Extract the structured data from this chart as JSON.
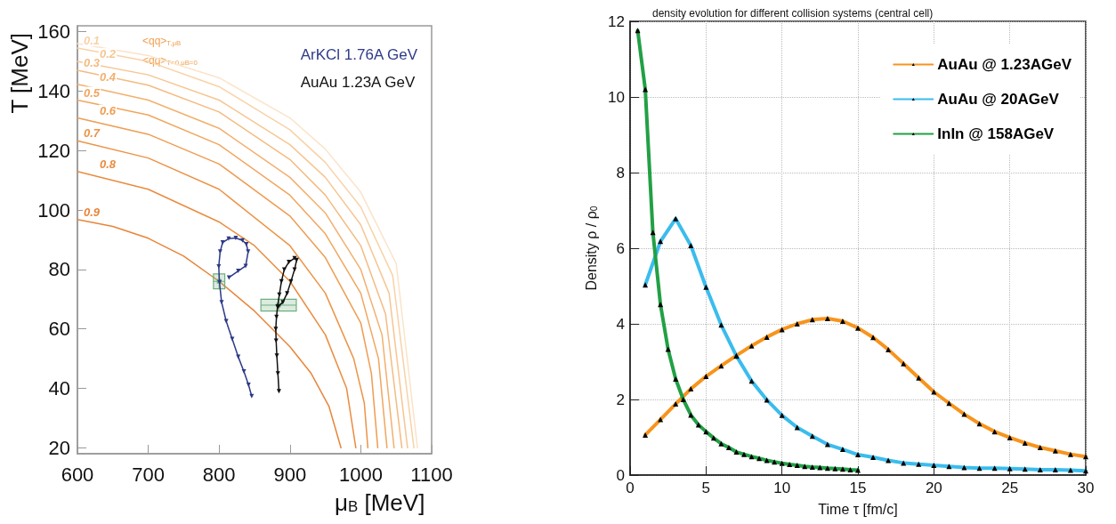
{
  "chart_data": [
    {
      "type": "line",
      "xlabel": "μ$_{B}$ [MeV]",
      "ylabel": "T [MeV]",
      "xlim": [
        600,
        1100
      ],
      "xticks": [
        600,
        700,
        800,
        900,
        1000,
        1100
      ],
      "ylim": [
        18,
        162
      ],
      "yticks": [
        20,
        40,
        60,
        80,
        100,
        120,
        140,
        160
      ],
      "grid": false,
      "legend": "top right",
      "annotations": [
        "<qq>$_{T,μB}$",
        "<qq>$_{T=0,μB=0}$"
      ],
      "series": [
        {
          "name": "0.9",
          "color": "#e8853a",
          "marker": "none",
          "x": [
            600,
            650,
            700,
            750,
            800,
            850,
            900,
            930,
            955,
            972
          ],
          "values": [
            96.8,
            94.5,
            90.5,
            84.5,
            76,
            66,
            54,
            45,
            34,
            20
          ]
        },
        {
          "name": "0.8",
          "color": "#ea8c3f",
          "marker": "none",
          "x": [
            600,
            700,
            800,
            850,
            900,
            950,
            980,
            993
          ],
          "values": [
            113,
            107,
            96,
            88,
            76,
            58,
            40,
            20
          ]
        },
        {
          "name": "0.7",
          "color": "#ec9447",
          "marker": "none",
          "x": [
            600,
            700,
            800,
            900,
            950,
            990,
            1005,
            1010
          ],
          "values": [
            123.3,
            117.5,
            107,
            88,
            72,
            50,
            35,
            20
          ]
        },
        {
          "name": "0.6",
          "color": "#ee9d52",
          "marker": "none",
          "x": [
            600,
            700,
            800,
            900,
            950,
            1000,
            1015,
            1024
          ],
          "values": [
            131,
            125.5,
            115.5,
            98,
            84,
            62,
            45,
            20
          ]
        },
        {
          "name": "0.5",
          "color": "#f0a65f",
          "marker": "none",
          "x": [
            600,
            700,
            800,
            900,
            950,
            1000,
            1025,
            1037
          ],
          "values": [
            137,
            132,
            122,
            105,
            92,
            72,
            50,
            20
          ]
        },
        {
          "name": "0.4",
          "color": "#f2b06e",
          "marker": "none",
          "x": [
            600,
            700,
            800,
            900,
            950,
            1000,
            1030,
            1047
          ],
          "values": [
            142.3,
            137,
            127.5,
            111,
            99,
            80,
            58,
            20
          ]
        },
        {
          "name": "0.3",
          "color": "#f4bb80",
          "marker": "none",
          "x": [
            600,
            700,
            800,
            900,
            950,
            1000,
            1035,
            1058
          ],
          "values": [
            147,
            142,
            133,
            117,
            105,
            88,
            65,
            20
          ]
        },
        {
          "name": "0.2",
          "color": "#f6c692",
          "marker": "none",
          "x": [
            600,
            700,
            800,
            900,
            950,
            1000,
            1040,
            1066
          ],
          "values": [
            150,
            145.5,
            137,
            122,
            111,
            95,
            72,
            20
          ]
        },
        {
          "name": "0.1",
          "color": "#f8d2a6",
          "marker": "none",
          "x": [
            600,
            700,
            800,
            900,
            950,
            1000,
            1045,
            1075
          ],
          "values": [
            154.5,
            150,
            141.5,
            127,
            116,
            101,
            78,
            20
          ]
        },
        {
          "color": "#fbe3c8",
          "marker": "none",
          "x": [
            600,
            700,
            800,
            900,
            950,
            1000,
            1050,
            1080
          ],
          "values": [
            156,
            152,
            144.5,
            131,
            120.5,
            106,
            82,
            20
          ]
        },
        {
          "type": "scatter",
          "color": "#6fae7f",
          "marker": "square",
          "x": [
            800,
            884
          ],
          "values": [
            76,
            68
          ],
          "errors": [
            2.5,
            2
          ],
          "xerrors": [
            8,
            25
          ]
        },
        {
          "name": "ArKCl 1.76A GeV",
          "color": "#2e3a87",
          "marker": "triangle",
          "x": [
            814,
            827,
            837.5,
            841,
            838.5,
            833,
            823.5,
            813.5,
            805,
            801.5,
            799.5,
            800.5,
            803.5,
            810,
            818.5,
            827,
            835,
            841.5,
            846
          ],
          "values": [
            77.3,
            79.5,
            81.2,
            86,
            88.5,
            89.8,
            90.6,
            90.4,
            89.1,
            86,
            81,
            75.7,
            69,
            62.6,
            56.6,
            50.6,
            45.7,
            41.2,
            37.4
          ]
        },
        {
          "name": "AuAu 1.23A GeV",
          "color": "#111111",
          "marker": "triangle",
          "x": [
            884.5,
            883,
            881.5,
            880.5,
            880,
            881,
            882.5,
            885,
            888,
            892,
            898.5,
            906.5,
            909.5,
            906.5,
            901.5,
            896,
            890,
            883.5
          ],
          "values": [
            39,
            45,
            51,
            56,
            60,
            64,
            67.5,
            71.5,
            76,
            80,
            82.5,
            83.8,
            83.2,
            80,
            76,
            72,
            69,
            67.5
          ]
        }
      ]
    },
    {
      "type": "line",
      "title": "density evolution for different collision systems (central cell)",
      "xlabel": "Time τ [fm/c]",
      "ylabel": "Density ρ / ρ$_{0}$",
      "xlim": [
        0,
        30
      ],
      "xticks": [
        0,
        5,
        10,
        15,
        20,
        25,
        30
      ],
      "ylim": [
        0,
        12
      ],
      "yticks": [
        0,
        2,
        4,
        6,
        8,
        10,
        12
      ],
      "grid": true,
      "legend": "top right",
      "marker": "triangle",
      "series": [
        {
          "name": "AuAu @ 1.23AGeV",
          "color": "#f7941d",
          "x": [
            1,
            2,
            3,
            4,
            5,
            6,
            7,
            8,
            9,
            10,
            11,
            12,
            13,
            14,
            15,
            16,
            17,
            18,
            19,
            20,
            21,
            22,
            23,
            24,
            25,
            26,
            27,
            28,
            29,
            30
          ],
          "values": [
            1.06,
            1.47,
            1.88,
            2.28,
            2.61,
            2.89,
            3.16,
            3.42,
            3.65,
            3.85,
            4.0,
            4.11,
            4.14,
            4.07,
            3.89,
            3.64,
            3.32,
            2.95,
            2.57,
            2.2,
            1.9,
            1.61,
            1.36,
            1.15,
            0.99,
            0.85,
            0.73,
            0.64,
            0.55,
            0.49
          ]
        },
        {
          "name": "AuAu @ 20AGeV",
          "color": "#3bbced",
          "x": [
            1,
            2,
            3,
            4,
            5,
            6,
            7,
            8,
            9,
            10,
            11,
            12,
            13,
            14,
            15,
            16,
            17,
            18,
            19,
            20,
            21,
            22,
            23,
            24,
            25,
            26,
            27,
            28,
            29,
            30
          ],
          "values": [
            5.03,
            6.18,
            6.78,
            6.07,
            4.97,
            3.97,
            3.15,
            2.49,
            1.99,
            1.58,
            1.26,
            1.03,
            0.81,
            0.68,
            0.54,
            0.47,
            0.39,
            0.32,
            0.29,
            0.26,
            0.23,
            0.2,
            0.18,
            0.18,
            0.17,
            0.16,
            0.14,
            0.14,
            0.13,
            0.11
          ]
        },
        {
          "name": "InIn @ 158AGeV",
          "color": "#22a045",
          "x": [
            0.5,
            1,
            1.5,
            2,
            2.5,
            3,
            3.5,
            4,
            4.5,
            5,
            5.5,
            6,
            6.5,
            7,
            7.5,
            8,
            8.5,
            9,
            9.5,
            10,
            10.5,
            11,
            11.5,
            12,
            12.5,
            13,
            13.5,
            14,
            14.5,
            15
          ],
          "values": [
            11.76,
            10.2,
            6.42,
            4.51,
            3.33,
            2.54,
            2.0,
            1.59,
            1.33,
            1.15,
            0.98,
            0.83,
            0.73,
            0.61,
            0.55,
            0.49,
            0.44,
            0.39,
            0.35,
            0.31,
            0.28,
            0.26,
            0.23,
            0.21,
            0.2,
            0.18,
            0.17,
            0.16,
            0.14,
            0.13
          ]
        }
      ]
    }
  ]
}
